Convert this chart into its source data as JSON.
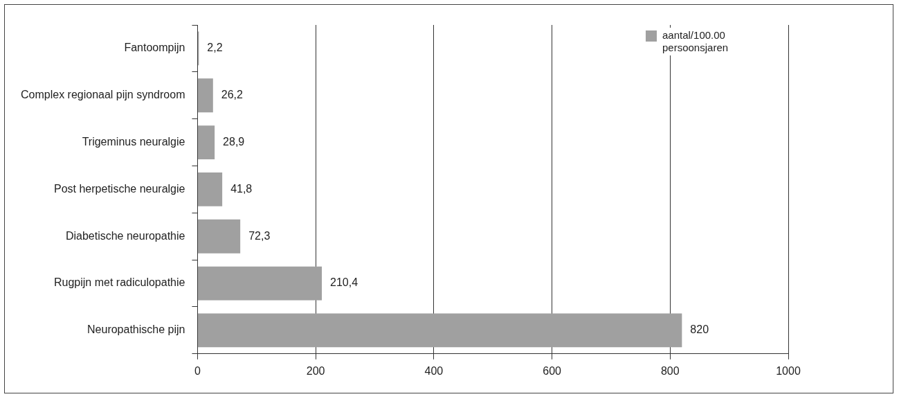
{
  "chart_data": {
    "type": "bar",
    "orientation": "horizontal",
    "categories": [
      "Fantoompijn",
      "Complex regionaal pijn syndroom",
      "Trigeminus neuralgie",
      "Post herpetische neuralgie",
      "Diabetische neuropathie",
      "Rugpijn met radiculopathie",
      "Neuropathische pijn"
    ],
    "series": [
      {
        "name": "aantal/100.00 persoonsjaren",
        "color": "#a0a0a0",
        "values": [
          2.2,
          26.2,
          28.9,
          41.8,
          72.3,
          210.4,
          820
        ],
        "value_labels": [
          "2,2",
          "26,2",
          "28,9",
          "41,8",
          "72,3",
          "210,4",
          "820"
        ]
      }
    ],
    "xlim": [
      0,
      1000
    ],
    "xticks": [
      0,
      200,
      400,
      600,
      800,
      1000
    ],
    "grid": "x",
    "legend": "top right"
  }
}
